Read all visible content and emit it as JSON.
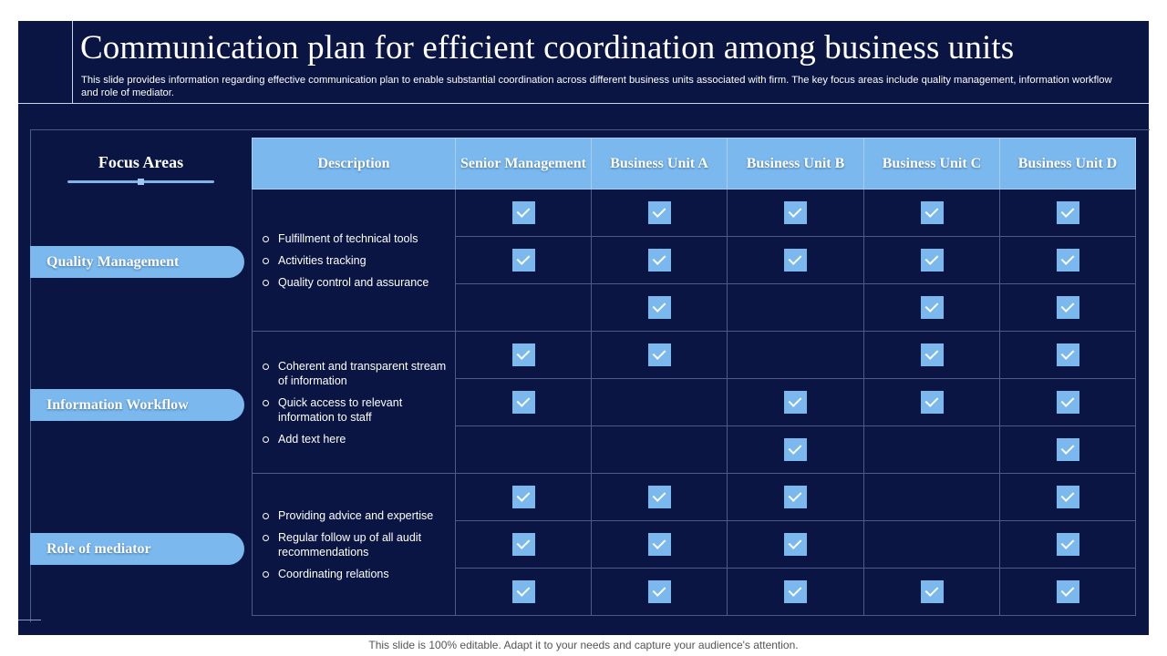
{
  "slide": {
    "title": "Communication plan for efficient coordination among business units",
    "subtitle": "This slide provides information regarding effective communication plan to enable substantial coordination across different business units associated with firm. The key focus areas include quality management, information workflow and role of mediator."
  },
  "focus": {
    "heading": "Focus Areas",
    "areas": [
      "Quality Management",
      "Information Workflow",
      "Role of mediator"
    ]
  },
  "table": {
    "headers": [
      "Description",
      "Senior Management",
      "Business Unit A",
      "Business Unit B",
      "Business Unit C",
      "Business Unit D"
    ],
    "groups": [
      {
        "bullets": [
          "Fulfillment of technical tools",
          "Activities tracking",
          "Quality control and assurance"
        ],
        "checks": [
          [
            true,
            true,
            true,
            true,
            true
          ],
          [
            true,
            true,
            true,
            true,
            true
          ],
          [
            false,
            true,
            false,
            true,
            true
          ]
        ]
      },
      {
        "bullets": [
          "Coherent and transparent stream of information",
          "Quick access to relevant information to staff",
          "Add text here"
        ],
        "checks": [
          [
            true,
            true,
            false,
            true,
            true
          ],
          [
            true,
            false,
            true,
            true,
            true
          ],
          [
            false,
            false,
            true,
            false,
            true
          ]
        ]
      },
      {
        "bullets": [
          "Providing advice  and expertise",
          "Regular follow up of all audit recommendations",
          "Coordinating relations"
        ],
        "checks": [
          [
            true,
            true,
            true,
            false,
            true
          ],
          [
            true,
            true,
            true,
            false,
            true
          ],
          [
            true,
            true,
            true,
            true,
            true
          ]
        ]
      }
    ]
  },
  "footer": "This slide is 100% editable. Adapt it to your needs and capture your audience's attention.",
  "colors": {
    "background": "#0a1543",
    "accent": "#7ab8ee"
  },
  "icons": {
    "check": "checkbox-checked-icon",
    "bullet": "circle-bullet-icon"
  }
}
